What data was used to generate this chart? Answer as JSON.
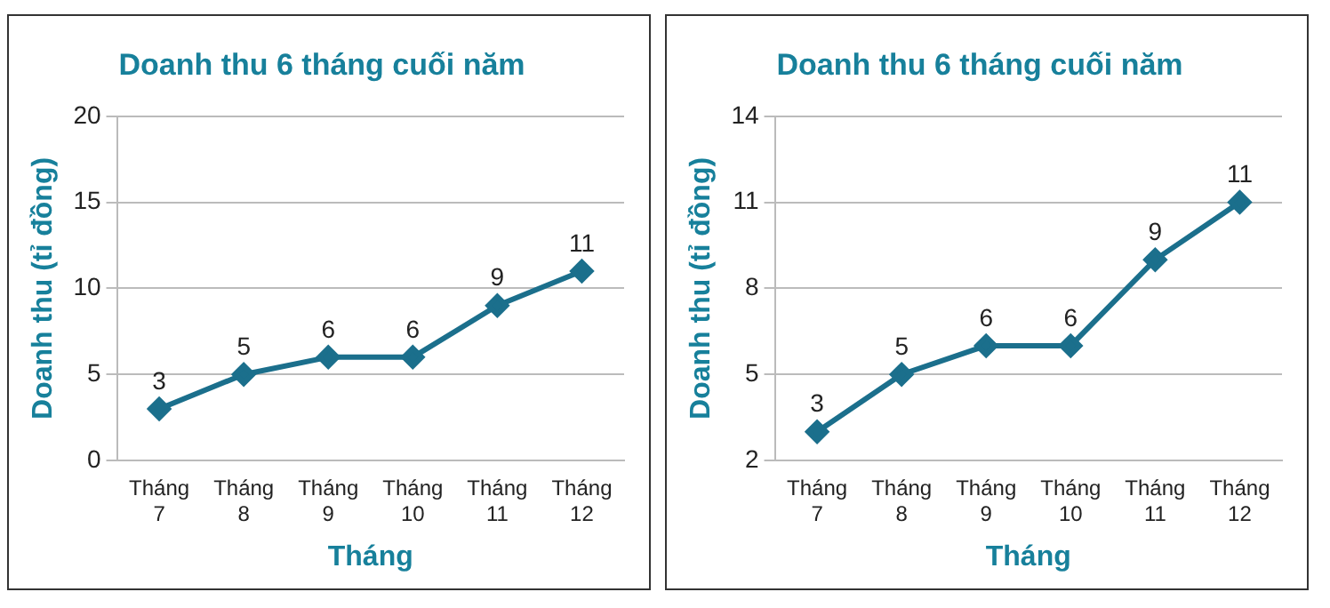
{
  "chart_data": [
    {
      "type": "line",
      "title": "Doanh thu 6 tháng cuối năm",
      "xlabel": "Tháng",
      "ylabel": "Doanh thu (tỉ đồng)",
      "categories": [
        "Tháng 7",
        "Tháng 8",
        "Tháng 9",
        "Tháng 10",
        "Tháng 11",
        "Tháng 12"
      ],
      "series": [
        {
          "color": "#1b6f8c",
          "values": [
            3,
            5,
            6,
            6,
            9,
            11
          ]
        }
      ],
      "ylim": [
        0,
        20
      ],
      "yticks": [
        0,
        5,
        10,
        15,
        20
      ],
      "grid": "y",
      "legend": false,
      "marker": "diamond",
      "line_style": "solid",
      "data_labels": true
    },
    {
      "type": "line",
      "title": "Doanh thu 6 tháng cuối năm",
      "xlabel": "Tháng",
      "ylabel": "Doanh thu (tỉ đồng)",
      "categories": [
        "Tháng 7",
        "Tháng 8",
        "Tháng 9",
        "Tháng 10",
        "Tháng 11",
        "Tháng 12"
      ],
      "series": [
        {
          "color": "#1b6f8c",
          "values": [
            3,
            5,
            6,
            6,
            9,
            11
          ]
        }
      ],
      "ylim": [
        2,
        14
      ],
      "yticks": [
        2,
        5,
        8,
        11,
        14
      ],
      "grid": "y",
      "legend": false,
      "marker": "diamond",
      "line_style": "solid",
      "data_labels": true
    }
  ]
}
